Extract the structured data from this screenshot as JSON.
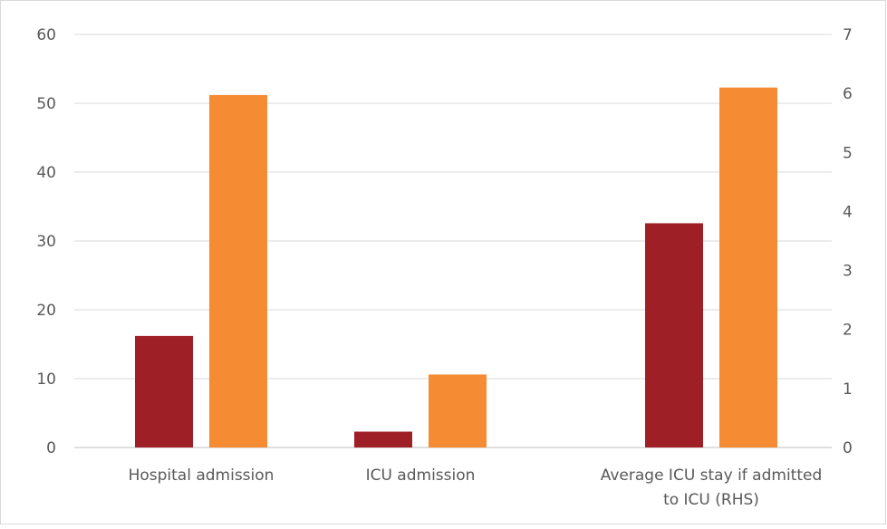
{
  "chart_data": {
    "type": "bar",
    "title": "",
    "categories": [
      [
        "Hospital admission"
      ],
      [
        "ICU admission"
      ],
      [
        "Average ICU stay if admitted",
        "to ICU (RHS)"
      ]
    ],
    "series": [
      {
        "values": [
          16.2,
          2.3,
          3.8
        ],
        "axis": [
          "left",
          "left",
          "right"
        ],
        "color": "#9e1f26"
      },
      {
        "values": [
          51.2,
          10.6,
          6.1
        ],
        "axis": [
          "left",
          "left",
          "right"
        ],
        "color": "#f58b33"
      }
    ],
    "y_left": {
      "range": [
        0,
        60
      ],
      "ticks": [
        "0",
        "10",
        "20",
        "30",
        "40",
        "50",
        "60"
      ]
    },
    "y_right": {
      "range": [
        0,
        7
      ],
      "ticks": [
        "0",
        "1",
        "2",
        "3",
        "4",
        "5",
        "6",
        "7"
      ]
    },
    "grid": true,
    "legend": "none",
    "colors": {
      "grid": "#d9d9d9",
      "text": "#595959",
      "border": "#d9d9d9"
    }
  }
}
